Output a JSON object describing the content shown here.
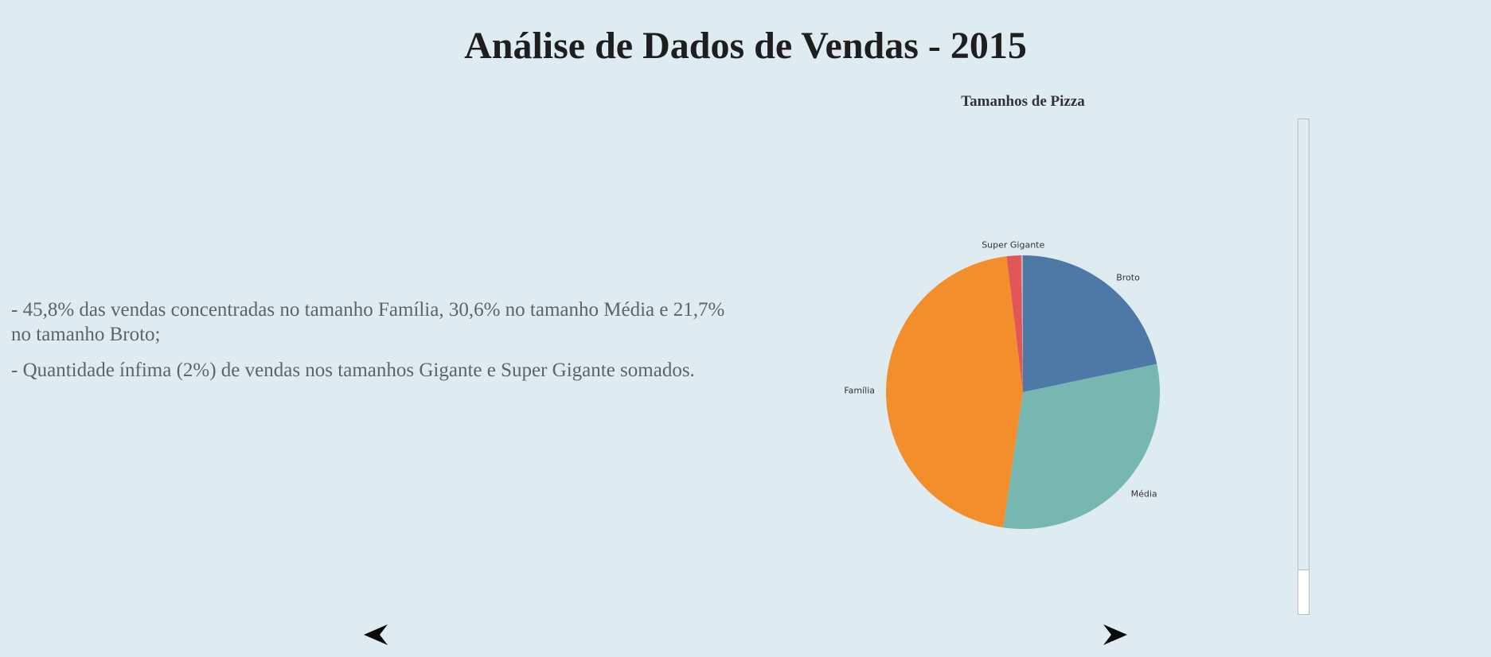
{
  "page": {
    "title": "Análise de Dados de Vendas - 2015"
  },
  "notes": [
    "- 45,8% das vendas concentradas no tamanho Família, 30,6% no tamanho Média e 21,7% no tamanho Broto;",
    "- Quantidade ínfima (2%) de vendas nos tamanhos Gigante e Super Gigante somados."
  ],
  "chart_data": {
    "type": "pie",
    "title": "Tamanhos de Pizza",
    "slices": [
      {
        "label": "Broto",
        "value": 21.7,
        "color": "#4e79a7"
      },
      {
        "label": "Média",
        "value": 30.6,
        "color": "#76b7b2"
      },
      {
        "label": "Família",
        "value": 45.8,
        "color": "#f28e2b"
      },
      {
        "label": "Super Gigante",
        "value": 1.7,
        "color": "#e15759"
      },
      {
        "label": "",
        "value": 0.2,
        "color": "#bab0ac"
      }
    ]
  },
  "navigation": {
    "prev_icon": "left-arrow-icon",
    "next_icon": "right-arrow-icon"
  },
  "scrollbar": {
    "position": 0.91
  }
}
